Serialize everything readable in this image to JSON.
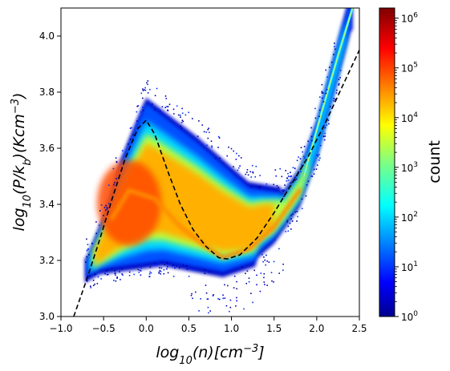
{
  "chart_data": {
    "type": "heatmap",
    "subtype": "2D histogram (phase diagram)",
    "xlabel": "log10(n)[cm^-3]",
    "ylabel": "log10(P/k_b)(Kcm^-3)",
    "xlim": [
      -1.0,
      2.5
    ],
    "ylim": [
      3.0,
      4.1
    ],
    "x_ticks": [
      -1.0,
      -0.5,
      0.0,
      0.5,
      1.0,
      1.5,
      2.0,
      2.5
    ],
    "x_tick_labels": [
      "−1.0",
      "−0.5",
      "0.0",
      "0.5",
      "1.0",
      "1.5",
      "2.0",
      "2.5"
    ],
    "y_ticks": [
      3.0,
      3.2,
      3.4,
      3.6,
      3.8,
      4.0
    ],
    "y_tick_labels": [
      "3.0",
      "3.2",
      "3.4",
      "3.6",
      "3.8",
      "4.0"
    ],
    "colormap": "jet",
    "color_scale": "log",
    "colorbar": {
      "label": "count",
      "range": [
        1,
        1600000
      ],
      "ticks": [
        1,
        10,
        100,
        1000,
        10000,
        100000,
        1000000
      ],
      "tick_bases": [
        "10",
        "10",
        "10",
        "10",
        "10",
        "10",
        "10"
      ],
      "tick_exponents": [
        "0",
        "1",
        "2",
        "3",
        "4",
        "5",
        "6"
      ]
    },
    "series": [
      {
        "kind": "dashed-curve",
        "color": "#000000",
        "x": [
          -0.85,
          -0.7,
          -0.55,
          -0.4,
          -0.25,
          -0.1,
          0.0,
          0.1,
          0.25,
          0.4,
          0.55,
          0.7,
          0.85,
          0.95,
          1.1,
          1.3,
          1.5,
          1.7,
          1.9,
          2.1,
          2.3,
          2.5
        ],
        "y": [
          3.0,
          3.13,
          3.27,
          3.42,
          3.56,
          3.67,
          3.7,
          3.65,
          3.52,
          3.4,
          3.31,
          3.25,
          3.21,
          3.205,
          3.22,
          3.28,
          3.37,
          3.47,
          3.57,
          3.69,
          3.82,
          3.95
        ]
      }
    ],
    "histogram_summary": {
      "dense_branch_upper": {
        "x": [
          -0.7,
          -0.5,
          -0.3,
          -0.1,
          0.0
        ],
        "y": [
          3.15,
          3.3,
          3.5,
          3.65,
          3.72
        ]
      },
      "ridge": {
        "x": [
          -0.4,
          -0.2,
          0.1,
          0.4,
          0.7,
          0.9,
          1.2,
          1.5,
          1.8,
          2.0,
          2.2,
          2.4
        ],
        "y": [
          3.35,
          3.45,
          3.42,
          3.32,
          3.25,
          3.21,
          3.24,
          3.32,
          3.45,
          3.62,
          3.85,
          4.08
        ]
      },
      "peak_count_region": {
        "x": [
          -0.6,
          0.3
        ],
        "y": [
          3.25,
          3.6
        ]
      }
    }
  }
}
